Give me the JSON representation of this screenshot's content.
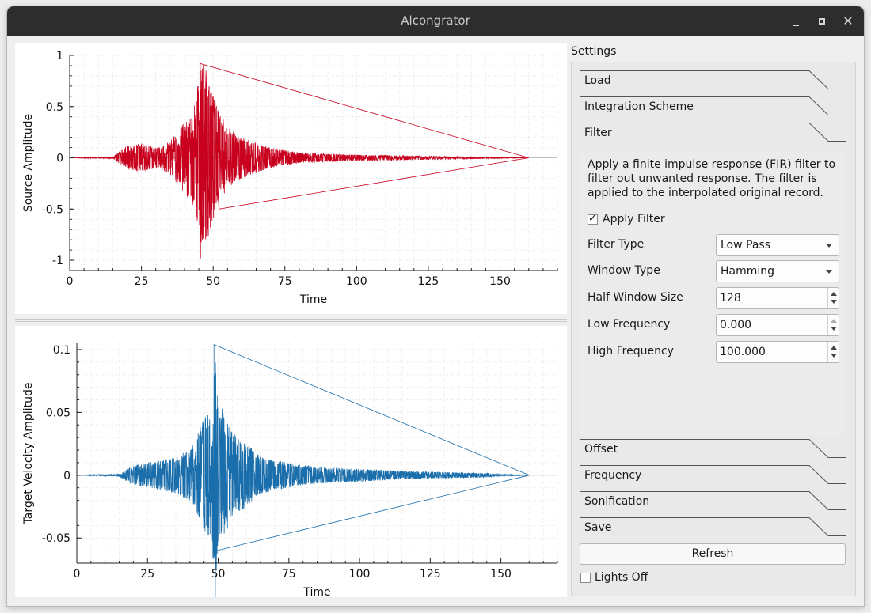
{
  "window": {
    "title": "Alcongrator",
    "minimize_icon": "minimize-icon",
    "maximize_icon": "maximize-icon",
    "close_icon": "close-icon"
  },
  "plots": {
    "source": {
      "ylabel": "Source Amplitude",
      "xlabel": "Time",
      "yticks": [
        "1",
        "0.5",
        "0",
        "-0.5",
        "-1"
      ],
      "xticks": [
        "0",
        "25",
        "50",
        "75",
        "100",
        "125",
        "150"
      ],
      "color": "#c8001e"
    },
    "target": {
      "ylabel": "Target Velocity Amplitude",
      "xlabel": "Time",
      "yticks": [
        "0.1",
        "0.05",
        "0",
        "-0.05"
      ],
      "xticks": [
        "0",
        "25",
        "50",
        "75",
        "100",
        "125",
        "150"
      ],
      "color": "#1a6eab"
    }
  },
  "chart_data": [
    {
      "type": "line",
      "ylabel": "Source Amplitude",
      "xlabel": "Time",
      "xlim": [
        0,
        170
      ],
      "ylim": [
        -1.1,
        1.0
      ],
      "xticks": [
        0,
        25,
        50,
        75,
        100,
        125,
        150
      ],
      "yticks": [
        -1,
        -0.5,
        0,
        0.5,
        1
      ],
      "grid": true,
      "series": [
        {
          "x": [
            0,
            15,
            20,
            25,
            30,
            35,
            40,
            42,
            44,
            46,
            47,
            48,
            50,
            52,
            55,
            60,
            65,
            70,
            80,
            90,
            100,
            120,
            140,
            160
          ],
          "envelope": [
            0,
            0.01,
            0.12,
            0.14,
            0.1,
            0.16,
            0.36,
            0.42,
            0.6,
            0.95,
            0.9,
            0.8,
            0.6,
            0.45,
            0.3,
            0.2,
            0.15,
            0.1,
            0.05,
            0.04,
            0.03,
            0.02,
            0.01,
            0
          ]
        }
      ]
    },
    {
      "type": "line",
      "ylabel": "Target Velocity Amplitude",
      "xlabel": "Time",
      "xlim": [
        0,
        170
      ],
      "ylim": [
        -0.07,
        0.105
      ],
      "xticks": [
        0,
        25,
        50,
        75,
        100,
        125,
        150
      ],
      "yticks": [
        -0.05,
        0,
        0.05,
        0.1
      ],
      "grid": true,
      "series": [
        {
          "x": [
            0,
            15,
            20,
            25,
            30,
            35,
            38,
            40,
            42,
            45,
            47,
            48,
            49,
            50,
            52,
            55,
            60,
            65,
            70,
            80,
            90,
            100,
            120,
            140,
            160
          ],
          "envelope": [
            0,
            0.001,
            0.008,
            0.01,
            0.012,
            0.015,
            0.018,
            0.02,
            0.03,
            0.045,
            0.05,
            0.07,
            0.104,
            0.06,
            0.05,
            0.035,
            0.025,
            0.015,
            0.012,
            0.008,
            0.006,
            0.005,
            0.003,
            0.002,
            0
          ]
        }
      ]
    }
  ],
  "settings": {
    "title": "Settings",
    "tabs_top": [
      "Load",
      "Integration Scheme",
      "Filter"
    ],
    "tabs_bottom": [
      "Offset",
      "Frequency",
      "Sonification",
      "Save"
    ],
    "filter": {
      "description_lines": [
        "Apply a finite impulse response (FIR) filter to",
        "filter out unwanted response. The filter is",
        "applied to the interpolated  original record."
      ],
      "apply_filter_label": "Apply Filter",
      "apply_filter_checked": true,
      "filter_type_label": "Filter Type",
      "filter_type_value": "Low Pass",
      "window_type_label": "Window Type",
      "window_type_value": "Hamming",
      "half_window_label": "Half Window Size",
      "half_window_value": "128",
      "low_freq_label": "Low Frequency",
      "low_freq_value": "0.000",
      "high_freq_label": "High Frequency",
      "high_freq_value": "100.000"
    },
    "refresh_label": "Refresh",
    "lights_off_label": "Lights Off",
    "lights_off_checked": false
  }
}
